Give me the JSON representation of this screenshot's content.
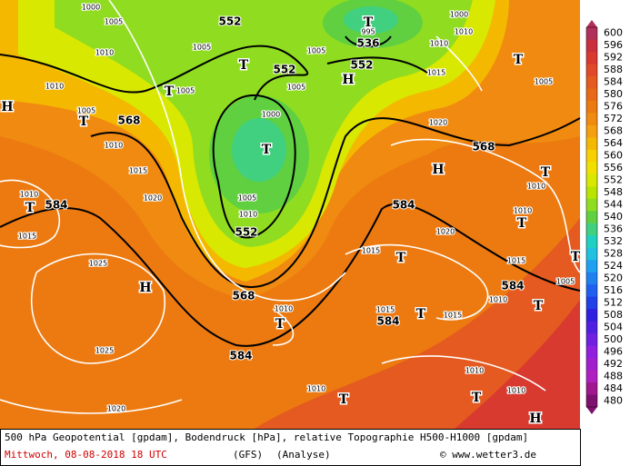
{
  "map": {
    "pressure_labels": [
      1000,
      1005,
      1010,
      1010,
      1005,
      1010,
      1015,
      1020,
      1010,
      1015,
      1025,
      1025,
      1020,
      1005,
      1005,
      1005,
      1000,
      1005,
      1010,
      1005,
      995,
      1000,
      1010,
      1010,
      1015,
      1005,
      1020,
      1010,
      1010,
      1020,
      1015,
      1015,
      1010,
      1005,
      1010,
      1015,
      1015,
      1010,
      1010,
      1010
    ],
    "geopotential_labels": [
      552,
      552,
      552,
      536,
      568,
      584,
      552,
      568,
      584,
      568,
      584,
      584,
      584
    ],
    "pressure_centers": [
      "T",
      "T",
      "T",
      "T",
      "T",
      "T",
      "H",
      "H",
      "H",
      "T",
      "T",
      "T",
      "H",
      "T",
      "T",
      "T",
      "T",
      "T",
      "T",
      "T",
      "H"
    ]
  },
  "legend": {
    "levels": [
      600,
      596,
      592,
      588,
      584,
      580,
      576,
      572,
      568,
      564,
      560,
      556,
      552,
      548,
      544,
      540,
      536,
      532,
      528,
      524,
      520,
      516,
      512,
      508,
      504,
      500,
      496,
      492,
      488,
      484,
      480
    ],
    "colors": [
      "#b0305a",
      "#c83040",
      "#d83a30",
      "#e04a28",
      "#e45a20",
      "#e86a18",
      "#ec7a10",
      "#f08a10",
      "#f4a010",
      "#f4b800",
      "#f8d000",
      "#f0e000",
      "#d8e800",
      "#b8e400",
      "#90dc20",
      "#60d040",
      "#40d080",
      "#20d0c0",
      "#20c0e0",
      "#20a0f0",
      "#2080f0",
      "#2060f0",
      "#2040e8",
      "#3020e0",
      "#5020e0",
      "#7020e0",
      "#9020e0",
      "#a020d0",
      "#b020c0",
      "#a01890",
      "#801070"
    ]
  },
  "footer": {
    "description": "500 hPa Geopotential [gpdam], Bodendruck [hPa], relative Topographie H500-H1000 [gpdam]",
    "date": "Mittwoch, 08-08-2018  18 UTC",
    "model": "(GFS)",
    "run": "(Analyse)",
    "source": "© www.wetter3.de"
  }
}
